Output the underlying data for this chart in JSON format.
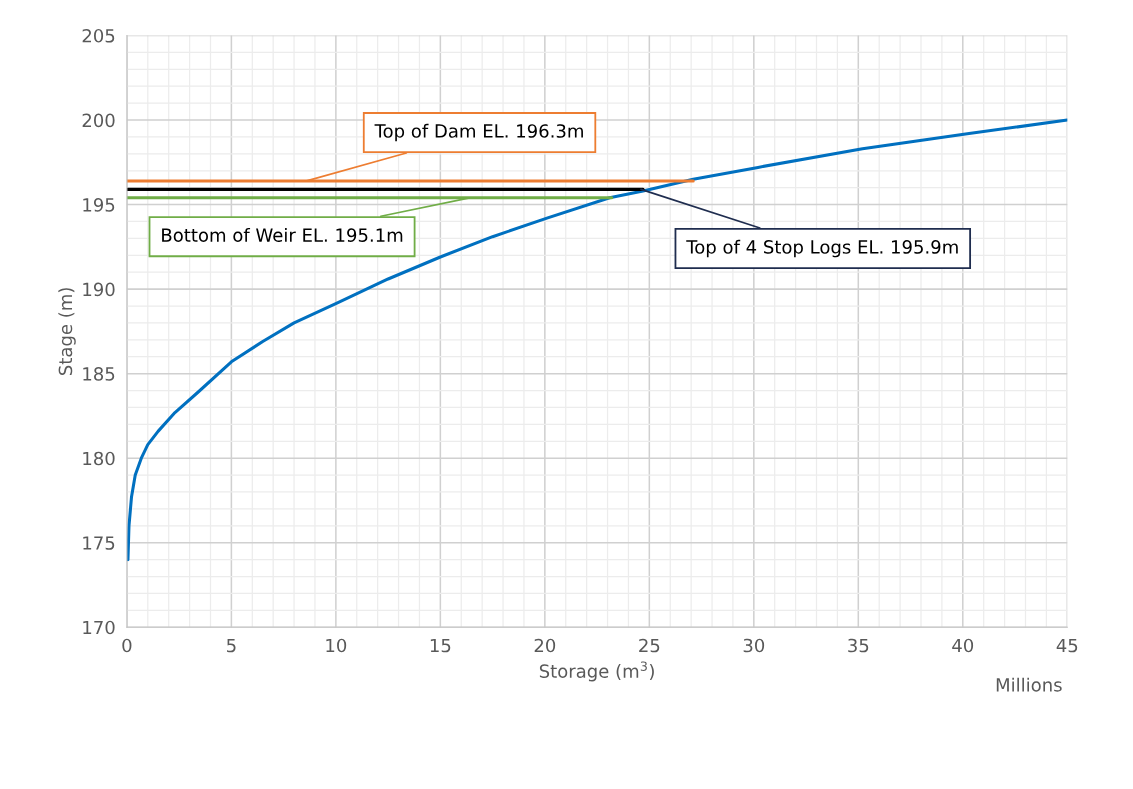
{
  "chart_data": {
    "type": "line",
    "xlabel": "Storage (m$^{3}$)",
    "ylabel": "Stage (m)",
    "xlim": [
      0,
      45
    ],
    "xticks": [
      0,
      5,
      10,
      15,
      20,
      25,
      30,
      35,
      40,
      45
    ],
    "ylim": [
      170,
      205
    ],
    "yticks": [
      170,
      175,
      180,
      185,
      190,
      195,
      200,
      205
    ],
    "grid": true,
    "marker": "none",
    "line_style": "solid",
    "series": [
      {
        "color": "#0070c0",
        "x": [
          0.05,
          0.1,
          0.22,
          0.4,
          0.69,
          1.0,
          1.5,
          2.3,
          3.4,
          5.0,
          6.5,
          8.0,
          10.1,
          12.5,
          15.0,
          17.5,
          20.1,
          23.1,
          24.7,
          27.1,
          30.2,
          35.2,
          40.3,
          45
        ],
        "values": [
          174,
          176.0,
          177.7,
          179.0,
          180.0,
          180.8,
          181.6,
          182.7,
          183.9,
          185.7,
          186.9,
          188.0,
          189.2,
          190.6,
          191.9,
          193.1,
          194.2,
          195.4,
          195.8,
          196.5,
          197.2,
          198.3,
          199.2,
          200.0
        ]
      },
      {
        "color": "#ed7d31",
        "x": [
          0,
          27.1
        ],
        "values": [
          196.4,
          196.4
        ]
      },
      {
        "color": "#000000",
        "x": [
          0,
          24.7
        ],
        "values": [
          195.9,
          195.9
        ]
      },
      {
        "color": "#70ad47",
        "x": [
          0,
          23.2
        ],
        "values": [
          195.4,
          195.4
        ]
      }
    ],
    "annotations": [
      {
        "text": "Top of Dam EL. 196.3m",
        "x": 8.6,
        "y": 196.4
      },
      {
        "text": "Top of 4 Stop Logs EL. 195.9m",
        "x": 24.6,
        "y": 195.9
      },
      {
        "text": "Bottom of Weir EL. 195.1m",
        "x": 16.4,
        "y": 195.4
      },
      "Millions"
    ]
  }
}
